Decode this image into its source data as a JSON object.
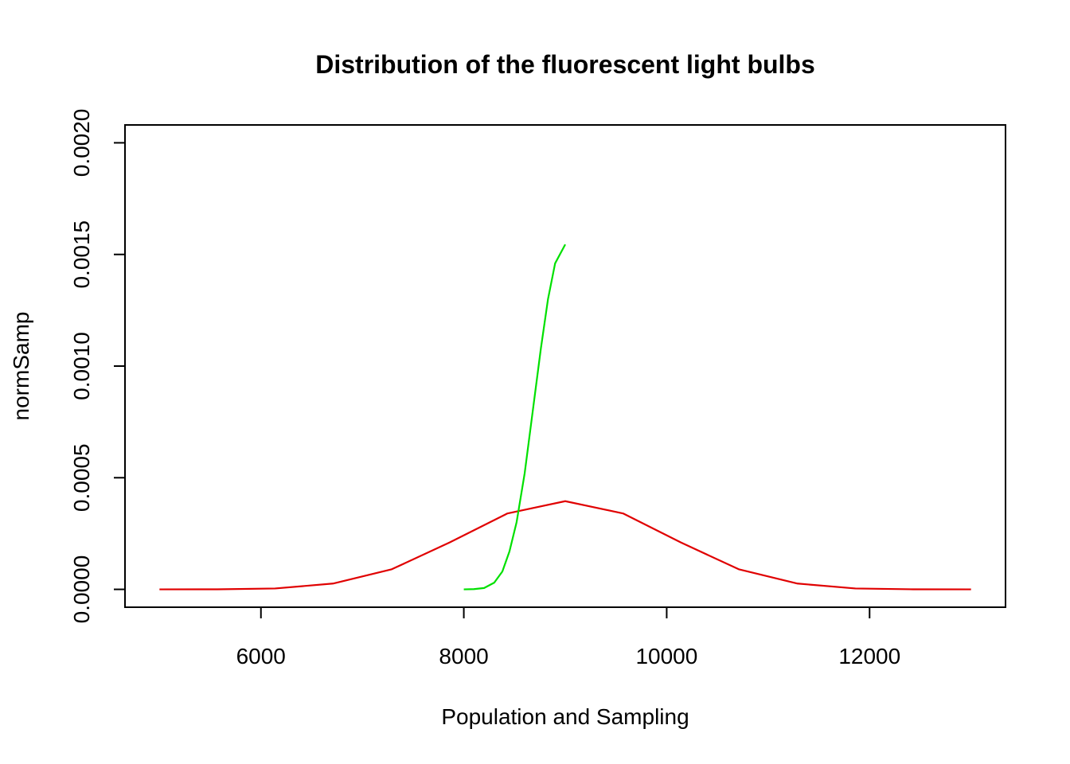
{
  "chart_data": {
    "type": "line",
    "title": "Distribution of the fluorescent light bulbs",
    "xlabel": "Population and Sampling",
    "ylabel": "normSamp",
    "xlim": [
      4660,
      13340
    ],
    "ylim": [
      -8e-05,
      0.00208
    ],
    "x_ticks": [
      6000,
      8000,
      10000,
      12000
    ],
    "x_tick_labels": [
      "6000",
      "8000",
      "10000",
      "12000"
    ],
    "y_ticks": [
      0,
      0.0005,
      0.001,
      0.0015,
      0.002
    ],
    "y_tick_labels": [
      "0.0000",
      "0.0005",
      "0.0010",
      "0.0015",
      "0.0020"
    ],
    "grid": false,
    "series": [
      {
        "color": "#e00000",
        "points": [
          [
            5000,
            0.0
          ],
          [
            5570,
            2e-07
          ],
          [
            6140,
            4e-06
          ],
          [
            6710,
            2.6e-05
          ],
          [
            7290,
            9e-05
          ],
          [
            7860,
            0.00021
          ],
          [
            8430,
            0.00034
          ],
          [
            9000,
            0.000395
          ],
          [
            9570,
            0.00034
          ],
          [
            10140,
            0.00021
          ],
          [
            10710,
            9e-05
          ],
          [
            11290,
            2.6e-05
          ],
          [
            11860,
            4e-06
          ],
          [
            12430,
            2e-07
          ],
          [
            13000,
            0.0
          ]
        ]
      },
      {
        "color": "#00e000",
        "points": [
          [
            8000,
            0.0
          ],
          [
            8100,
            1e-06
          ],
          [
            8200,
            6e-06
          ],
          [
            8300,
            3e-05
          ],
          [
            8380,
            8e-05
          ],
          [
            8450,
            0.00017
          ],
          [
            8520,
            0.0003
          ],
          [
            8600,
            0.00052
          ],
          [
            8680,
            0.0008
          ],
          [
            8760,
            0.00108
          ],
          [
            8830,
            0.0013
          ],
          [
            8900,
            0.00146
          ],
          [
            9000,
            0.001545
          ]
        ]
      }
    ]
  }
}
